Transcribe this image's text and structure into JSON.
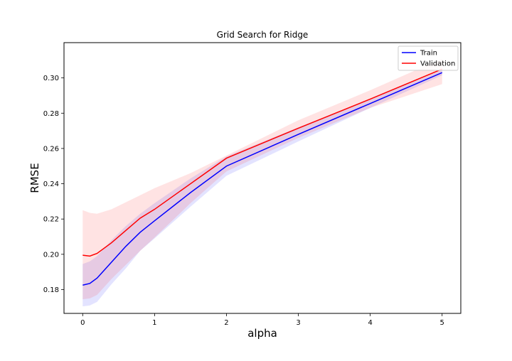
{
  "chart_data": {
    "type": "line",
    "title": "Grid Search for Ridge",
    "xlabel": "alpha",
    "ylabel": "RMSE",
    "xlim": [
      -0.26,
      5.26
    ],
    "ylim": [
      0.1665,
      0.32
    ],
    "xticks": [
      0,
      1,
      2,
      3,
      4,
      5
    ],
    "yticks": [
      0.18,
      0.2,
      0.22,
      0.24,
      0.26,
      0.28,
      0.3
    ],
    "ytick_labels": [
      "0.18",
      "0.20",
      "0.22",
      "0.24",
      "0.26",
      "0.28",
      "0.30"
    ],
    "grid": false,
    "legend_position": "top-right",
    "series": [
      {
        "name": "Train",
        "color": "#0000ff",
        "fill": "#0000ff",
        "x": [
          0,
          0.1,
          0.2,
          0.4,
          0.6,
          0.8,
          1.0,
          1.5,
          2.0,
          3.0,
          4.0,
          5.0
        ],
        "values": [
          0.1825,
          0.1835,
          0.1865,
          0.1955,
          0.2045,
          0.2125,
          0.219,
          0.235,
          0.25,
          0.268,
          0.2855,
          0.303
        ],
        "lower": [
          0.1705,
          0.171,
          0.173,
          0.183,
          0.192,
          0.202,
          0.209,
          0.227,
          0.2445,
          0.264,
          0.283,
          0.3015
        ],
        "upper": [
          0.1945,
          0.196,
          0.199,
          0.208,
          0.216,
          0.223,
          0.229,
          0.243,
          0.2555,
          0.272,
          0.288,
          0.3045
        ]
      },
      {
        "name": "Validation",
        "color": "#ff0000",
        "fill": "#ff0000",
        "x": [
          0,
          0.1,
          0.2,
          0.4,
          0.6,
          0.8,
          1.0,
          1.5,
          2.0,
          3.0,
          4.0,
          5.0
        ],
        "values": [
          0.1995,
          0.199,
          0.2005,
          0.2065,
          0.2135,
          0.2205,
          0.2255,
          0.24,
          0.2545,
          0.2715,
          0.288,
          0.305
        ],
        "lower": [
          0.1745,
          0.175,
          0.177,
          0.186,
          0.194,
          0.202,
          0.2095,
          0.229,
          0.247,
          0.266,
          0.283,
          0.2965
        ],
        "upper": [
          0.225,
          0.2235,
          0.223,
          0.2255,
          0.2295,
          0.2335,
          0.2375,
          0.246,
          0.256,
          0.276,
          0.293,
          0.311
        ]
      }
    ]
  }
}
